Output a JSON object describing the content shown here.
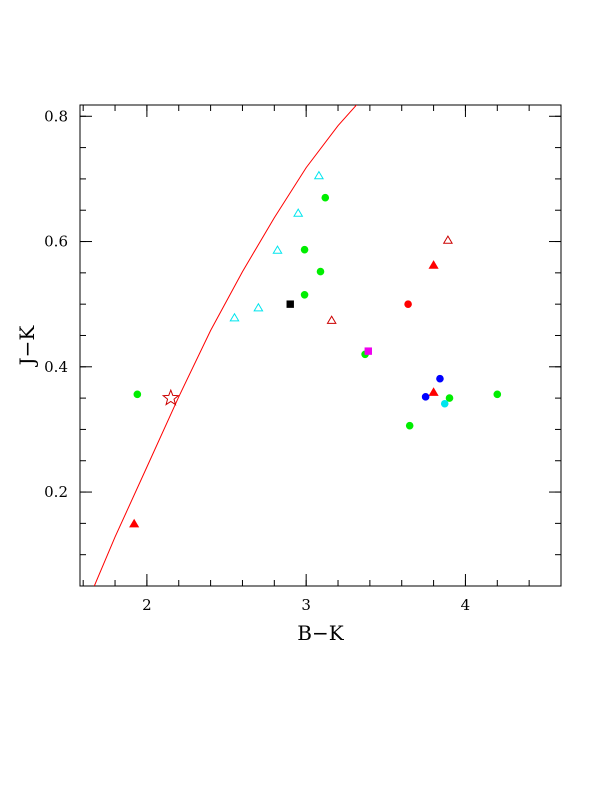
{
  "chart_data": {
    "type": "scatter",
    "xlabel": "B−K",
    "ylabel": "J−K",
    "xlim": [
      1.58,
      4.6
    ],
    "ylim": [
      0.05,
      0.818
    ],
    "grid": false,
    "legend": "none",
    "x_ticks": [
      {
        "value": 2,
        "label": "2"
      },
      {
        "value": 3,
        "label": "3"
      },
      {
        "value": 4,
        "label": "4"
      }
    ],
    "y_ticks": [
      {
        "value": 0.2,
        "label": "0.2"
      },
      {
        "value": 0.4,
        "label": "0.4"
      },
      {
        "value": 0.6,
        "label": "0.6"
      },
      {
        "value": 0.8,
        "label": "0.8"
      }
    ],
    "x_minor_step": 0.2,
    "y_minor_step": 0.05,
    "curve": {
      "color": "#ff0000",
      "points": [
        [
          1.67,
          0.05
        ],
        [
          1.8,
          0.128
        ],
        [
          2.0,
          0.24
        ],
        [
          2.2,
          0.352
        ],
        [
          2.4,
          0.458
        ],
        [
          2.6,
          0.552
        ],
        [
          2.8,
          0.638
        ],
        [
          3.0,
          0.718
        ],
        [
          3.2,
          0.785
        ],
        [
          3.33,
          0.822
        ]
      ]
    },
    "series": [
      {
        "marker": "circle",
        "color": "#00ee00",
        "filled": true,
        "points": [
          [
            1.94,
            0.356
          ],
          [
            2.99,
            0.587
          ],
          [
            3.12,
            0.67
          ],
          [
            3.09,
            0.552
          ],
          [
            2.99,
            0.515
          ],
          [
            3.37,
            0.42
          ],
          [
            3.65,
            0.306
          ],
          [
            3.9,
            0.35
          ],
          [
            4.2,
            0.356
          ]
        ]
      },
      {
        "marker": "triangle",
        "color": "#00e5ee",
        "filled": false,
        "points": [
          [
            2.55,
            0.478
          ],
          [
            2.7,
            0.494
          ],
          [
            2.82,
            0.586
          ],
          [
            2.95,
            0.645
          ],
          [
            3.08,
            0.705
          ]
        ]
      },
      {
        "marker": "triangle",
        "color": "#ff0000",
        "filled": true,
        "points": [
          [
            1.92,
            0.149
          ],
          [
            3.8,
            0.562
          ],
          [
            3.8,
            0.359
          ]
        ]
      },
      {
        "marker": "triangle",
        "color": "#cc0000",
        "filled": false,
        "points": [
          [
            3.16,
            0.474
          ],
          [
            3.89,
            0.602
          ]
        ]
      },
      {
        "marker": "circle",
        "color": "#ff0000",
        "filled": true,
        "points": [
          [
            3.64,
            0.5
          ]
        ]
      },
      {
        "marker": "circle",
        "color": "#0000ff",
        "filled": true,
        "points": [
          [
            3.75,
            0.352
          ],
          [
            3.84,
            0.381
          ]
        ]
      },
      {
        "marker": "circle",
        "color": "#00e5ee",
        "filled": true,
        "points": [
          [
            3.87,
            0.341
          ]
        ]
      },
      {
        "marker": "square",
        "color": "#000000",
        "filled": true,
        "points": [
          [
            2.9,
            0.5
          ]
        ]
      },
      {
        "marker": "square",
        "color": "#ee00ee",
        "filled": true,
        "points": [
          [
            3.39,
            0.425
          ]
        ]
      },
      {
        "marker": "star",
        "color": "#cc0000",
        "filled": false,
        "points": [
          [
            2.15,
            0.35
          ]
        ]
      }
    ]
  }
}
